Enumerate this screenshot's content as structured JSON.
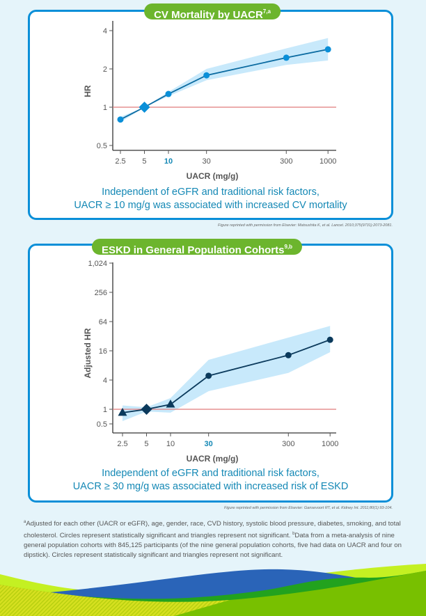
{
  "panel1": {
    "title": "CV Mortality by UACR",
    "title_sup": "7,a",
    "caption_line1": "Independent of eGFR and traditional risk factors,",
    "caption_line2": "UACR ≥ 10 mg/g was associated with increased CV mortality",
    "citation": "Figure reprinted with permission from Elsevier: Matsushita K, et al. Lancet. 2010;375(9731):2073-2081."
  },
  "panel2": {
    "title": "ESKD in General Population Cohorts",
    "title_sup": "9,b",
    "caption_line1": "Independent of eGFR and traditional risk factors,",
    "caption_line2": "UACR ≥ 30 mg/g was associated with increased risk of ESKD",
    "citation": "Figure reprinted with permission from Elsevier: Gansevoort RT, et al. Kidney Int. 2011;80(1):93-104."
  },
  "footnote": {
    "a_mark": "a",
    "a_text": "Adjusted for each other (UACR or eGFR), age, gender, race, CVD history, systolic blood pressure, diabetes, smoking, and total cholesterol. Circles represent statistically significant and triangles represent not significant. ",
    "b_mark": "b",
    "b_text": "Data from a meta-analysis of nine general population cohorts with 845,125 participants (of the nine general population cohorts, five had data on UACR and four on dipstick). Circles represent statistically significant and triangles represent not significant."
  },
  "colors": {
    "line1": "#0a6aa0",
    "marker1": "#0a8fd8",
    "line2": "#0b3a5c",
    "ci": "#c8e9fb",
    "ref": "#e07a7a",
    "accent": "#1488b5",
    "pill": "#6cb52d",
    "border": "#0a8fd8"
  },
  "chart_data": [
    {
      "type": "line",
      "title": "CV Mortality by UACR",
      "xlabel": "UACR (mg/g)",
      "ylabel": "HR",
      "xscale": "log",
      "yscale": "log2",
      "xticks": [
        "2.5",
        "5",
        "10",
        "30",
        "300",
        "1000"
      ],
      "xtick_highlight": "10",
      "yticks": [
        "0.5",
        "1",
        "2",
        "4"
      ],
      "ylim": [
        0.5,
        4.3
      ],
      "reference_line": 1,
      "x": [
        2.5,
        5,
        10,
        30,
        300,
        1000
      ],
      "y": [
        0.8,
        1.0,
        1.27,
        1.78,
        2.45,
        2.85
      ],
      "ci_upper": [
        0.84,
        1.0,
        1.32,
        2.0,
        2.9,
        3.5
      ],
      "ci_lower": [
        0.76,
        1.0,
        1.22,
        1.63,
        2.15,
        2.33
      ],
      "markers": [
        "circle",
        "diamond",
        "circle",
        "circle",
        "circle",
        "circle"
      ]
    },
    {
      "type": "line",
      "title": "ESKD in General Population Cohorts",
      "xlabel": "UACR (mg/g)",
      "ylabel": "Adjusted HR",
      "xscale": "log",
      "yscale": "log2",
      "xticks": [
        "2.5",
        "5",
        "10",
        "30",
        "300",
        "1000"
      ],
      "xtick_highlight": "30",
      "yticks": [
        "0.5",
        "1",
        "4",
        "16",
        "64",
        "256",
        "1,024"
      ],
      "ylim": [
        0.3,
        1024
      ],
      "reference_line": 1,
      "x": [
        2.5,
        5,
        10,
        30,
        300,
        1000
      ],
      "y": [
        0.85,
        1.0,
        1.26,
        4.9,
        13,
        27
      ],
      "ci_upper": [
        1.2,
        1.1,
        1.7,
        10.4,
        30,
        52
      ],
      "ci_lower": [
        0.57,
        0.9,
        0.85,
        2.36,
        5.6,
        15
      ],
      "markers": [
        "triangle",
        "diamond",
        "triangle",
        "circle",
        "circle",
        "circle"
      ]
    }
  ]
}
